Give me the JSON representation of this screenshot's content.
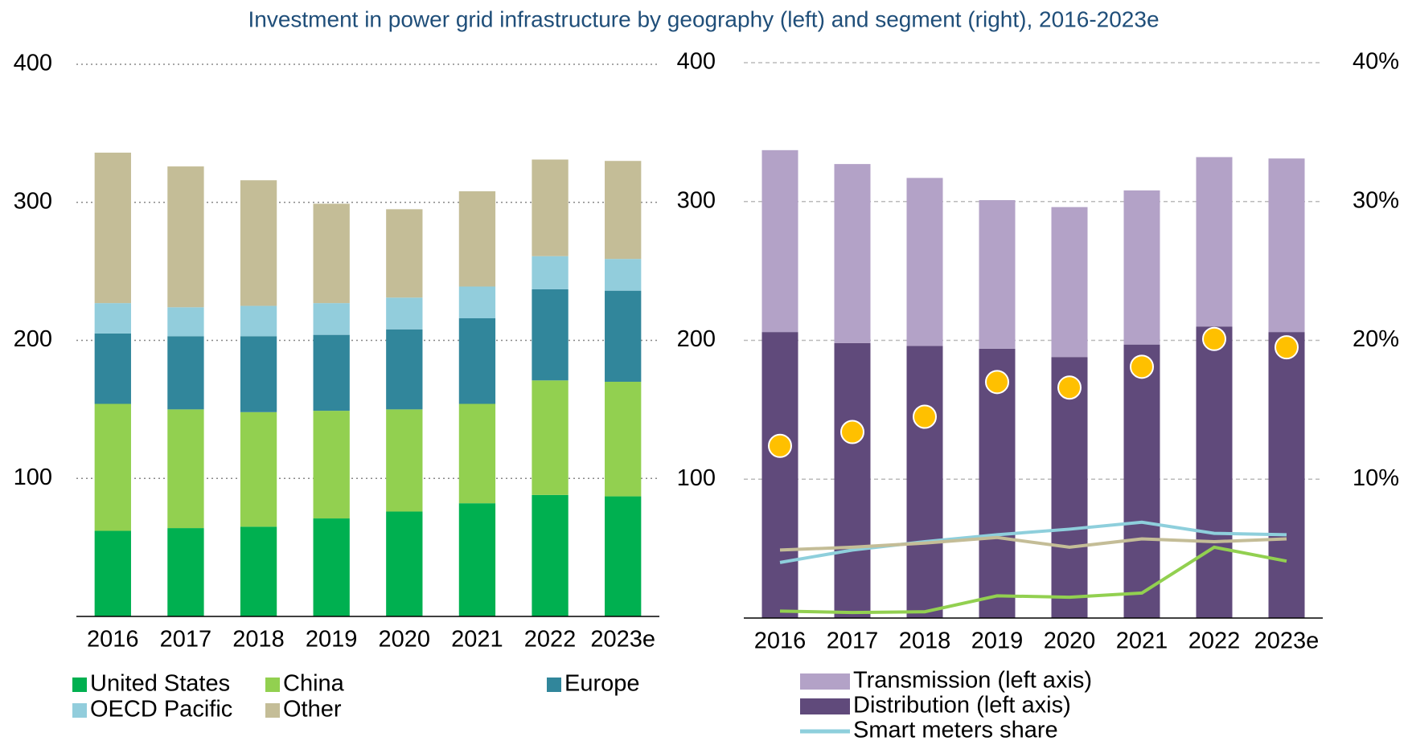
{
  "title": "Investment in power grid infrastructure by geography (left) and segment (right), 2016-2023e",
  "chart_data": [
    {
      "type": "bar",
      "categories": [
        "2016",
        "2017",
        "2018",
        "2019",
        "2020",
        "2021",
        "2022",
        "2023e"
      ],
      "ylim": [
        0,
        400
      ],
      "yticks": [
        100,
        200,
        300,
        400
      ],
      "grid": true,
      "series": [
        {
          "name": "United States",
          "color": "#00b050",
          "values": [
            62,
            64,
            65,
            71,
            76,
            82,
            88,
            87
          ]
        },
        {
          "name": "China",
          "color": "#92d050",
          "values": [
            92,
            86,
            83,
            78,
            74,
            72,
            83,
            83
          ]
        },
        {
          "name": "Europe",
          "color": "#31869b",
          "values": [
            51,
            53,
            55,
            55,
            58,
            62,
            66,
            66
          ]
        },
        {
          "name": "OECD Pacific",
          "color": "#92cddc",
          "values": [
            22,
            21,
            22,
            23,
            23,
            23,
            24,
            23
          ]
        },
        {
          "name": "Other",
          "color": "#c4bd97",
          "values": [
            109,
            102,
            91,
            72,
            64,
            69,
            70,
            71
          ]
        }
      ]
    },
    {
      "type": "bar",
      "categories": [
        "2016",
        "2017",
        "2018",
        "2019",
        "2020",
        "2021",
        "2022",
        "2023e"
      ],
      "ylim": [
        0,
        400
      ],
      "yticks": [
        100,
        200,
        300,
        400
      ],
      "grid": true,
      "y2lim": [
        0,
        40
      ],
      "y2ticks": [
        {
          "value": 10,
          "label": "10%"
        },
        {
          "value": 20,
          "label": "20%"
        },
        {
          "value": 30,
          "label": "30%"
        },
        {
          "value": 40,
          "label": "40%"
        }
      ],
      "series": [
        {
          "name": "Distribution (left axis)",
          "color": "#604a7b",
          "values": [
            206,
            198,
            196,
            194,
            188,
            197,
            210,
            206
          ]
        },
        {
          "name": "Transmission (left axis)",
          "color": "#b3a2c7",
          "values": [
            131,
            129,
            121,
            107,
            108,
            111,
            122,
            125
          ]
        },
        {
          "name": "Smart meters share",
          "type": "line",
          "axis": "y2",
          "color": "#8ecfdc",
          "values": [
            4.0,
            4.9,
            5.5,
            6.0,
            6.4,
            6.9,
            6.1,
            6.0
          ]
        },
        {
          "type": "line",
          "axis": "y2",
          "color": "#c4bd97",
          "values": [
            4.9,
            5.1,
            5.4,
            5.8,
            5.1,
            5.7,
            5.5,
            5.7
          ]
        },
        {
          "type": "line",
          "axis": "y2",
          "color": "#92d050",
          "values": [
            0.5,
            0.4,
            0.45,
            1.6,
            1.5,
            1.8,
            5.1,
            4.1
          ]
        },
        {
          "type": "scatter",
          "axis": "y2",
          "color": "#ffc000",
          "values": [
            12.4,
            13.4,
            14.5,
            17.0,
            16.6,
            18.1,
            20.1,
            19.5
          ]
        }
      ]
    }
  ]
}
